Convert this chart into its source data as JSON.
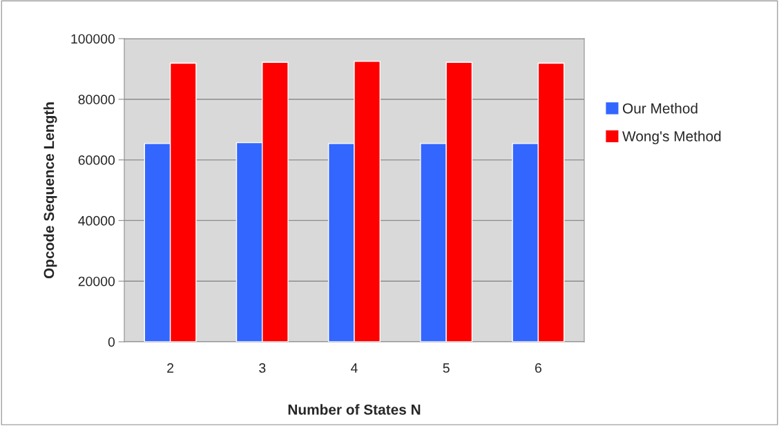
{
  "chart_data": {
    "type": "bar",
    "xlabel": "Number of States N",
    "ylabel": "Opcode Sequence Length",
    "categories": [
      "2",
      "3",
      "4",
      "5",
      "6"
    ],
    "series": [
      {
        "name": "Our Method",
        "color": "#3366ff",
        "values": [
          65400,
          65700,
          65400,
          65400,
          65400
        ]
      },
      {
        "name": "Wong's Method",
        "color": "#ff0000",
        "values": [
          91900,
          92200,
          92500,
          92200,
          91900
        ]
      }
    ],
    "ylim": [
      0,
      100000
    ],
    "yticks": [
      0,
      20000,
      40000,
      60000,
      80000,
      100000
    ],
    "grid": "y",
    "legend": "right"
  }
}
